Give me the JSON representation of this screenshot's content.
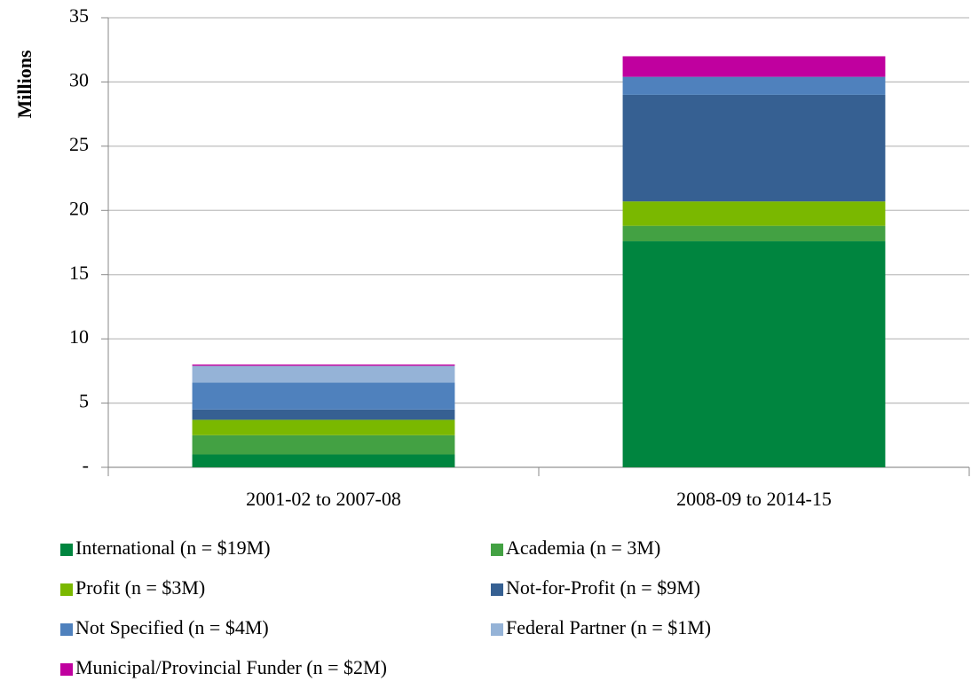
{
  "chart_data": {
    "type": "stacked_bar",
    "y_axis_label": "Millions",
    "categories": [
      "2001-02 to 2007-08",
      "2008-09 to 2014-15"
    ],
    "series": [
      {
        "name": "International (n = $19M)",
        "color": "#00853f",
        "values": [
          1.0,
          17.6
        ]
      },
      {
        "name": "Academia (n = 3M)",
        "color": "#43a143",
        "values": [
          1.5,
          1.2
        ]
      },
      {
        "name": "Profit (n = $3M)",
        "color": "#7ab800",
        "values": [
          1.2,
          1.9
        ]
      },
      {
        "name": "Not-for-Profit (n = $9M)",
        "color": "#366092",
        "values": [
          0.8,
          8.3
        ]
      },
      {
        "name": "Not Specified (n = $4M)",
        "color": "#4f81bd",
        "values": [
          2.1,
          1.4
        ]
      },
      {
        "name": "Federal Partner (n = $1M)",
        "color": "#95b3d7",
        "values": [
          1.3,
          0
        ]
      },
      {
        "name": "Municipal/Provincial Funder (n = $2M)",
        "color": "#c0009f",
        "values": [
          0.1,
          1.6
        ]
      }
    ],
    "ylim": [
      0,
      35
    ],
    "yticks": [
      {
        "value": 0,
        "label": "-"
      },
      5,
      10,
      15,
      20,
      25,
      30,
      35
    ],
    "grid": true
  }
}
